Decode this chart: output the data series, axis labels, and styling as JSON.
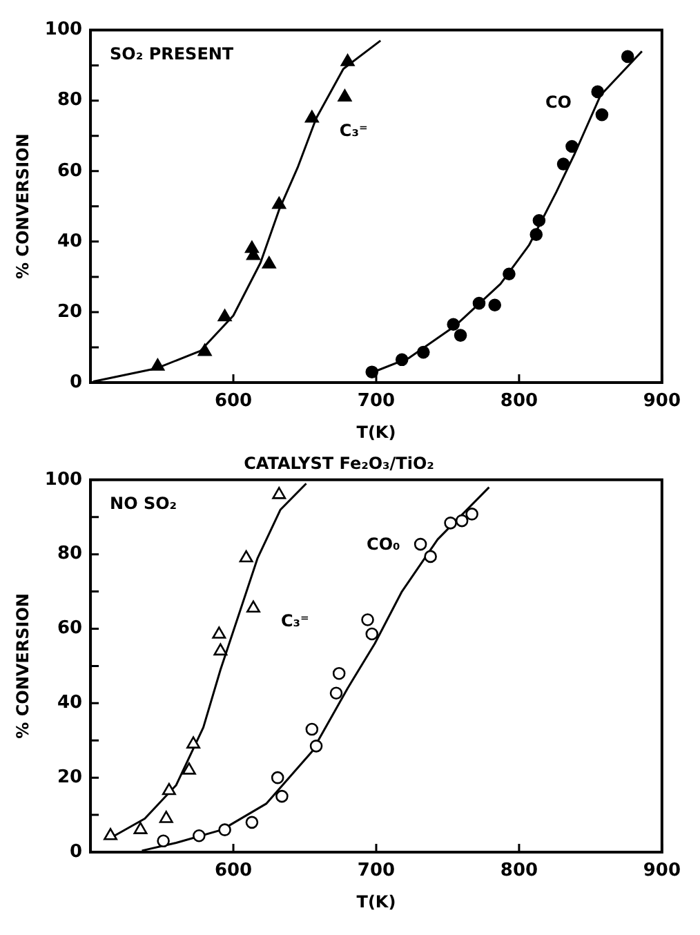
{
  "chart_data": [
    {
      "type": "scatter",
      "xlabel": "T(K)",
      "ylabel": "% CONVERSION",
      "annotations": [
        "SO₂ PRESENT"
      ],
      "xlim": [
        500,
        900
      ],
      "xticks": [
        {
          "value": 500,
          "label": null
        },
        600,
        700,
        800,
        900
      ],
      "ylim": [
        0,
        100
      ],
      "yticks": [
        0,
        {
          "value": 10,
          "label": null
        },
        20,
        {
          "value": 30,
          "label": null
        },
        40,
        {
          "value": 50,
          "label": null
        },
        60,
        {
          "value": 70,
          "label": null
        },
        80,
        {
          "value": 90,
          "label": null
        },
        100
      ],
      "grid": false,
      "legend": false,
      "series": [
        {
          "name": "C₃⁼",
          "type": "scatter",
          "marker": "triangle",
          "color": "#000000",
          "x": [
            547,
            580,
            594,
            613,
            614,
            625,
            632,
            655,
            678,
            680
          ],
          "values": [
            4.6,
            8.8,
            18.6,
            38,
            36,
            33.6,
            50.5,
            75,
            81,
            91
          ]
        },
        {
          "type": "line",
          "marker": "none",
          "color": "#000000",
          "x": [
            502,
            546,
            577,
            600,
            619,
            632,
            645,
            658,
            677,
            703
          ],
          "values": [
            0.3,
            4,
            9,
            19,
            34,
            49,
            61,
            75,
            89,
            97
          ]
        },
        {
          "name": "CO",
          "type": "scatter",
          "marker": "circle",
          "color": "#000000",
          "x": [
            697,
            718,
            733,
            754,
            759,
            772,
            783,
            793,
            812,
            814,
            831,
            837,
            855,
            858,
            876
          ],
          "values": [
            3,
            6.5,
            8.6,
            16.5,
            13.4,
            22.5,
            22,
            30.8,
            42,
            46,
            62,
            67,
            82.5,
            76,
            92.5
          ]
        },
        {
          "type": "line",
          "marker": "none",
          "color": "#000000",
          "x": [
            695,
            723,
            755,
            787,
            807,
            826,
            839,
            857,
            886
          ],
          "values": [
            2.5,
            7,
            16,
            28,
            39,
            54,
            65,
            81.5,
            94
          ]
        }
      ]
    },
    {
      "type": "scatter",
      "title": "CATALYST Fe₂O₃/TiO₂",
      "xlabel": "T(K)",
      "ylabel": "% CONVERSION",
      "annotations": [
        "NO SO₂"
      ],
      "xlim": [
        500,
        900
      ],
      "xticks": [
        {
          "value": 500,
          "label": null
        },
        600,
        700,
        800,
        900
      ],
      "ylim": [
        0,
        100
      ],
      "yticks": [
        0,
        {
          "value": 10,
          "label": null
        },
        20,
        {
          "value": 30,
          "label": null
        },
        40,
        {
          "value": 50,
          "label": null
        },
        60,
        {
          "value": 70,
          "label": null
        },
        80,
        {
          "value": 90,
          "label": null
        },
        100
      ],
      "grid": false,
      "legend": false,
      "series": [
        {
          "name": "C₃⁼",
          "type": "scatter",
          "marker": "triangle",
          "color": "#000000",
          "x": [
            514,
            535,
            553,
            555,
            569,
            572,
            590,
            591,
            609,
            614,
            632
          ],
          "values": [
            4.4,
            6,
            9,
            16.5,
            22,
            29,
            58.5,
            54,
            79,
            65.5,
            96
          ]
        },
        {
          "type": "line",
          "marker": "none",
          "color": "#000000",
          "x": [
            514,
            538,
            560,
            579,
            591,
            604,
            617,
            633,
            651
          ],
          "values": [
            3.8,
            9,
            18,
            33.5,
            49,
            64,
            79,
            92,
            99
          ]
        },
        {
          "name": "CO₀",
          "type": "scatter",
          "marker": "circle",
          "color": "#000000",
          "x": [
            551,
            576,
            594,
            613,
            631,
            634,
            655,
            658,
            672,
            674,
            694,
            697,
            731,
            738,
            752,
            760,
            767
          ],
          "values": [
            3,
            4.4,
            6,
            8,
            20,
            15,
            33,
            28.5,
            42.7,
            48,
            62.4,
            58.6,
            82.7,
            79.4,
            88.4,
            89,
            90.8
          ]
        },
        {
          "type": "line",
          "marker": "none",
          "color": "#000000",
          "x": [
            536,
            560,
            592,
            623,
            655,
            680,
            699,
            718,
            743,
            779
          ],
          "values": [
            0.4,
            2.5,
            6,
            13,
            27,
            44,
            56,
            70,
            84,
            98
          ]
        }
      ]
    }
  ]
}
